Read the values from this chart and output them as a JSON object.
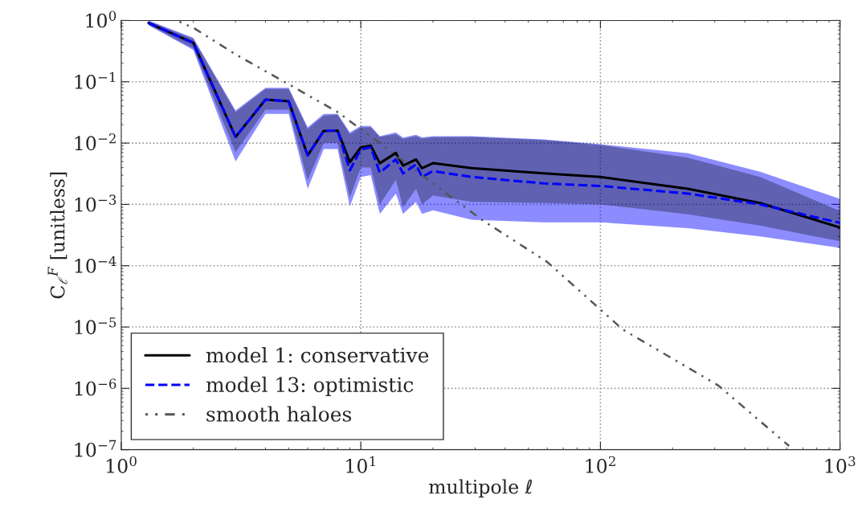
{
  "chart_data": {
    "type": "line",
    "xlabel": "multipole ℓ",
    "ylabel": "C$_{ℓ}$$^{F}$ [unitless]",
    "log": "xy",
    "grid": true,
    "legend": "bottom left",
    "xlim": [
      1,
      1000
    ],
    "xticks": [
      {
        "value": 1,
        "label": "10$^{0}$"
      },
      {
        "value": 10,
        "label": "10$^{1}$"
      },
      {
        "value": 100,
        "label": "10$^{2}$"
      },
      {
        "value": 1000,
        "label": "10$^{3}$"
      }
    ],
    "ylim": [
      1e-07,
      1
    ],
    "yticks": [
      {
        "value": 1e-07,
        "label": "10$^{−7}$"
      },
      {
        "value": 1e-06,
        "label": "10$^{−6}$"
      },
      {
        "value": 1e-05,
        "label": "10$^{−5}$"
      },
      {
        "value": 0.0001,
        "label": "10$^{−4}$"
      },
      {
        "value": 0.001,
        "label": "10$^{−3}$"
      },
      {
        "value": 0.01,
        "label": "10$^{−2}$"
      },
      {
        "value": 0.1,
        "label": "10$^{−1}$"
      },
      {
        "value": 1,
        "label": "10$^{0}$"
      }
    ],
    "series": [
      {
        "name": "model 1: conservative",
        "color": "#000000",
        "line_style": "solid",
        "x": [
          1.3,
          2,
          3,
          4,
          5,
          6,
          7,
          8,
          9,
          10,
          11,
          12,
          14,
          15,
          17,
          18,
          20,
          29,
          58,
          100,
          232,
          464,
          1000
        ],
        "values": [
          0.91,
          0.43,
          0.0126,
          0.051,
          0.048,
          0.0063,
          0.0158,
          0.016,
          0.0049,
          0.0085,
          0.0091,
          0.0047,
          0.0069,
          0.0043,
          0.0054,
          0.0039,
          0.0047,
          0.0039,
          0.0032,
          0.0028,
          0.0018,
          0.00105,
          0.00042
        ],
        "upper": [
          0.98,
          0.5,
          0.032,
          0.076,
          0.076,
          0.017,
          0.028,
          0.029,
          0.014,
          0.018,
          0.018,
          0.0126,
          0.014,
          0.0117,
          0.013,
          0.0118,
          0.0125,
          0.0126,
          0.0112,
          0.0093,
          0.0058,
          0.0028,
          0.00078
        ],
        "lower": [
          0.85,
          0.35,
          0.0071,
          0.035,
          0.035,
          0.0025,
          0.01,
          0.01,
          0.0013,
          0.004,
          0.004,
          0.001,
          0.0025,
          0.0009,
          0.0018,
          0.001,
          0.0014,
          0.0011,
          0.00105,
          0.001,
          0.00069,
          0.00045,
          0.00025
        ]
      },
      {
        "name": "model 13: optimistic",
        "color": "#0000ff",
        "line_style": "dashed",
        "x": [
          1.3,
          2,
          3,
          4,
          5,
          6,
          7,
          8,
          9,
          10,
          11,
          12,
          14,
          15,
          17,
          18,
          20,
          29,
          58,
          100,
          232,
          464,
          1000
        ],
        "values": [
          0.91,
          0.43,
          0.0126,
          0.051,
          0.048,
          0.0063,
          0.0158,
          0.016,
          0.0036,
          0.0079,
          0.0085,
          0.0033,
          0.0054,
          0.0032,
          0.0045,
          0.0028,
          0.0035,
          0.0028,
          0.0022,
          0.002,
          0.0015,
          0.001,
          0.0005
        ],
        "upper": [
          1.0,
          0.52,
          0.034,
          0.08,
          0.08,
          0.018,
          0.03,
          0.03,
          0.015,
          0.019,
          0.019,
          0.013,
          0.015,
          0.0123,
          0.0137,
          0.0124,
          0.013,
          0.013,
          0.0115,
          0.0096,
          0.0068,
          0.0034,
          0.00123
        ],
        "lower": [
          0.83,
          0.33,
          0.005,
          0.03,
          0.03,
          0.0018,
          0.008,
          0.008,
          0.00093,
          0.0028,
          0.003,
          0.0007,
          0.0015,
          0.0007,
          0.0011,
          0.0007,
          0.0008,
          0.00056,
          0.00051,
          0.00051,
          0.00041,
          0.0003,
          0.000195
        ]
      },
      {
        "name": "smooth haloes",
        "color": "#555555",
        "line_style": "dotted",
        "x": [
          1.75,
          2,
          3,
          5,
          8,
          12,
          20,
          32,
          60,
          124,
          310,
          613
        ],
        "values": [
          0.95,
          0.76,
          0.28,
          0.091,
          0.032,
          0.01,
          0.0022,
          0.00056,
          0.000115,
          9.1e-06,
          1.12e-06,
          1.15e-07
        ]
      }
    ]
  }
}
